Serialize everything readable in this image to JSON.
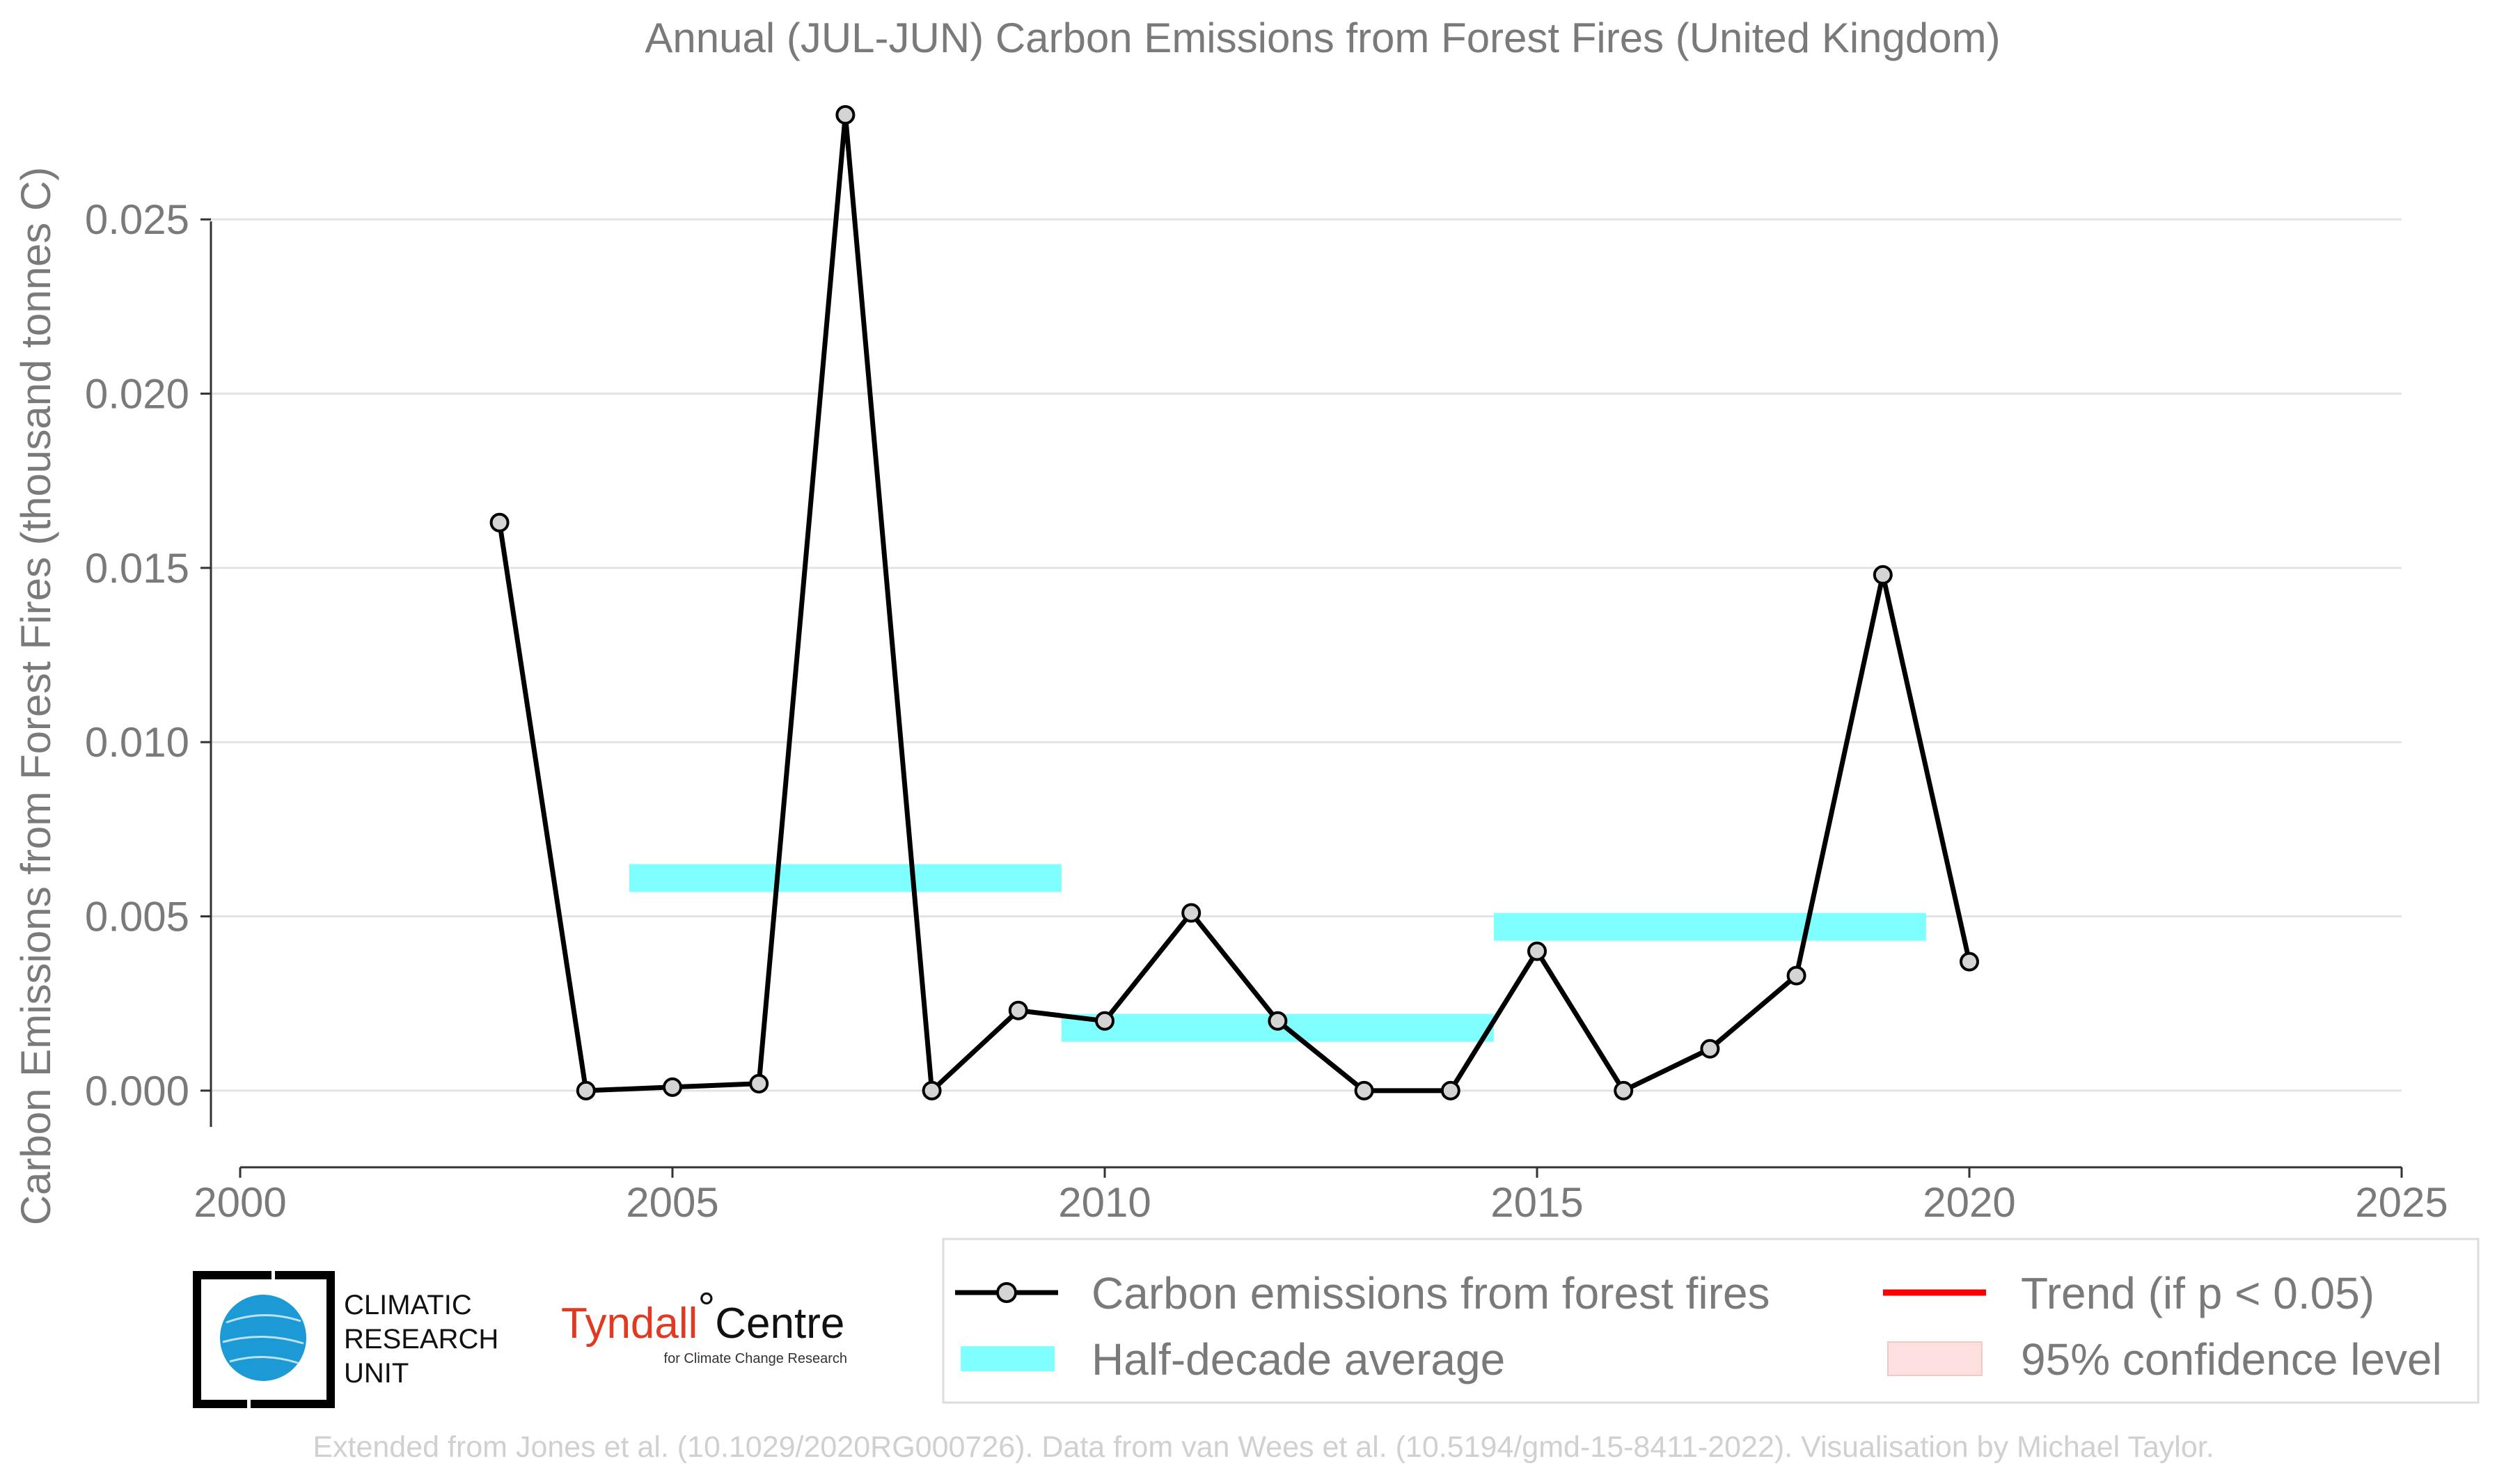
{
  "chart_data": {
    "type": "line",
    "title": "Annual (JUL-JUN) Carbon Emissions from Forest Fires (United Kingdom)",
    "ylabel": "Carbon Emissions from Forest Fires (thousand tonnes C)",
    "xlabel": "",
    "xlim": [
      2000,
      2025
    ],
    "ylim": [
      -0.0022,
      0.0283
    ],
    "x_ticks": [
      2000,
      2005,
      2010,
      2015,
      2020,
      2025
    ],
    "y_ticks": [
      "0.000",
      "0.005",
      "0.010",
      "0.015",
      "0.020",
      "0.025"
    ],
    "grid": "horizontal",
    "legend_position": "bottom",
    "series": [
      {
        "name": "Carbon emissions from forest fires",
        "x": [
          2003,
          2004,
          2005,
          2006,
          2007,
          2008,
          2009,
          2010,
          2011,
          2012,
          2013,
          2014,
          2015,
          2016,
          2017,
          2018,
          2019,
          2020
        ],
        "values": [
          0.0163,
          0.0,
          0.0001,
          0.0002,
          0.028,
          0.0,
          0.0023,
          0.002,
          0.0051,
          0.002,
          0.0,
          0.0,
          0.004,
          0.0,
          0.0012,
          0.0033,
          0.0148,
          0.0037
        ],
        "color": "#000000"
      },
      {
        "name": "Half-decade average",
        "segments": [
          {
            "x_start": 2004.5,
            "x_end": 2009.5,
            "value": 0.0061
          },
          {
            "x_start": 2009.5,
            "x_end": 2014.5,
            "value": 0.0018
          },
          {
            "x_start": 2014.5,
            "x_end": 2019.5,
            "value": 0.0047
          }
        ],
        "color": "#7fffff"
      }
    ],
    "legend": [
      {
        "label": "Carbon emissions from forest fires",
        "color": "#000000",
        "kind": "line-marker"
      },
      {
        "label": "Half-decade average",
        "color": "#7fffff",
        "kind": "band"
      },
      {
        "label": "Trend (if p < 0.05)",
        "color": "#ff0000",
        "kind": "line"
      },
      {
        "label": "95% confidence level",
        "color": "#ffe0e0",
        "kind": "patch"
      }
    ]
  },
  "logos": {
    "cru": {
      "line1": "CLIMATIC",
      "line2": "RESEARCH",
      "line3": "UNIT",
      "globe_color": "#1b9ad6"
    },
    "tyndall": {
      "name": "Tyndall",
      "degree": "°",
      "centre": "Centre",
      "subtitle": "for Climate Change Research"
    }
  },
  "credit": "Extended from Jones et al. (10.1029/2020RG000726). Data from van Wees et al. (10.5194/gmd-15-8411-2022). Visualisation by Michael Taylor."
}
